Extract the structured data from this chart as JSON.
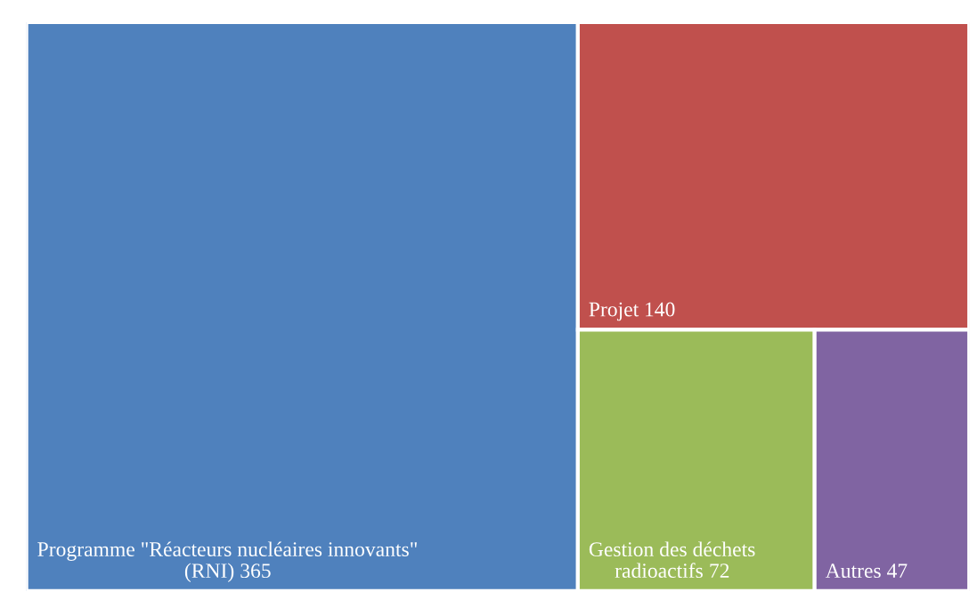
{
  "chart_data": {
    "type": "other",
    "categories": [
      "Programme \"Réacteurs nucléaires innovants\" (RNI)",
      "Projet",
      "Gestion des déchets radioactifs",
      "Autres"
    ],
    "values": [
      365,
      140,
      72,
      47
    ],
    "colors": [
      "#4f81bd",
      "#c0504d",
      "#9bbb59",
      "#8064a2"
    ],
    "data_labels": true
  }
}
